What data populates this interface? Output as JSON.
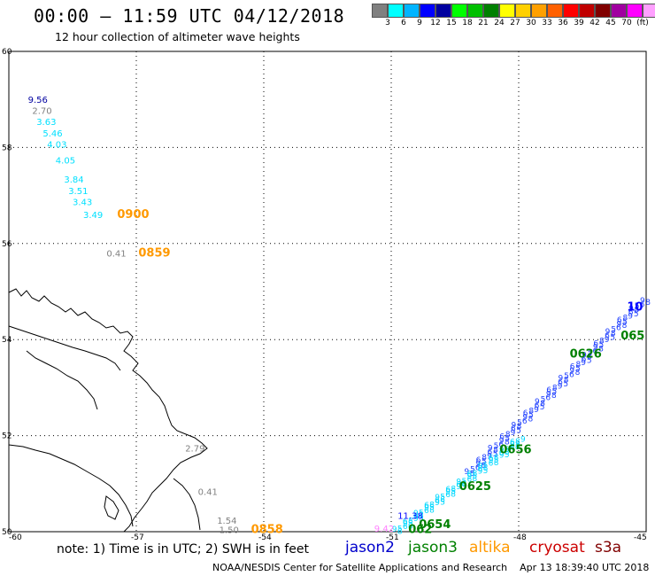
{
  "header": {
    "title": "00:00 – 11:59 UTC 04/12/2018",
    "subtitle": "12 hour collection of altimeter wave heights"
  },
  "colorbar": {
    "colors": [
      "#808080",
      "#00ffff",
      "#00b4ff",
      "#0000ff",
      "#0000a0",
      "#00ff00",
      "#00c000",
      "#008000",
      "#ffff00",
      "#ffd000",
      "#ffa000",
      "#ff6000",
      "#ff0000",
      "#c00000",
      "#800000",
      "#a000a0",
      "#ff00ff",
      "#ffa0ff",
      "#000000"
    ],
    "labels": [
      "3",
      "6",
      "9",
      "12",
      "15",
      "18",
      "21",
      "24",
      "27",
      "30",
      "33",
      "36",
      "39",
      "42",
      "45",
      "70",
      "(ft)"
    ]
  },
  "axes": {
    "lat_ticks": [
      "60",
      "58",
      "56",
      "54",
      "52",
      "50"
    ],
    "lon_ticks": [
      "-60",
      "-57",
      "-54",
      "-51",
      "-48",
      "-45"
    ]
  },
  "observations": [
    {
      "text": "9.56",
      "lon": -59.55,
      "lat": 58.93,
      "color": "#0000a0"
    },
    {
      "text": "2.70",
      "lon": -59.45,
      "lat": 58.7,
      "color": "#808080"
    },
    {
      "text": "3.63",
      "lon": -59.35,
      "lat": 58.47,
      "color": "#00e0ff"
    },
    {
      "text": "5.46",
      "lon": -59.2,
      "lat": 58.23,
      "color": "#00e0ff"
    },
    {
      "text": "4.03",
      "lon": -59.1,
      "lat": 58.0,
      "color": "#00e0ff"
    },
    {
      "text": "4.05",
      "lon": -58.9,
      "lat": 57.67,
      "color": "#00e0ff"
    },
    {
      "text": "3.84",
      "lon": -58.7,
      "lat": 57.27,
      "color": "#00e0ff"
    },
    {
      "text": "3.51",
      "lon": -58.6,
      "lat": 57.03,
      "color": "#00e0ff"
    },
    {
      "text": "3.43",
      "lon": -58.5,
      "lat": 56.8,
      "color": "#00e0ff"
    },
    {
      "text": "3.49",
      "lon": -58.25,
      "lat": 56.53,
      "color": "#00e0ff"
    },
    {
      "text": "0.41",
      "lon": -57.7,
      "lat": 55.73,
      "color": "#808080"
    },
    {
      "text": "2.79",
      "lon": -55.85,
      "lat": 51.67,
      "color": "#808080"
    },
    {
      "text": "0.41",
      "lon": -55.55,
      "lat": 50.77,
      "color": "#808080"
    },
    {
      "text": "1.54",
      "lon": -55.1,
      "lat": 50.17,
      "color": "#808080"
    },
    {
      "text": "1.50",
      "lon": -55.05,
      "lat": 49.97,
      "color": "#808080"
    },
    {
      "text": "11.38",
      "lon": -50.85,
      "lat": 50.27,
      "color": "#0000ff"
    },
    {
      "text": "9.42",
      "lon": -51.4,
      "lat": 50.0,
      "color": "#ff80ff"
    }
  ],
  "time_labels": [
    {
      "text": "0900",
      "lon": -57.45,
      "lat": 56.53,
      "color": "#ff9900"
    },
    {
      "text": "0859",
      "lon": -56.95,
      "lat": 55.73,
      "color": "#ff9900"
    },
    {
      "text": "0858",
      "lon": -54.3,
      "lat": 49.97,
      "color": "#ff9900"
    },
    {
      "text": "0626",
      "lon": -46.8,
      "lat": 53.63,
      "color": "#008000"
    },
    {
      "text": "0656",
      "lon": -48.45,
      "lat": 51.63,
      "color": "#008000"
    },
    {
      "text": "0625",
      "lon": -49.4,
      "lat": 50.87,
      "color": "#008000"
    },
    {
      "text": "0654",
      "lon": -50.35,
      "lat": 50.07,
      "color": "#008000"
    },
    {
      "text": "062",
      "lon": -50.6,
      "lat": 49.97,
      "color": "#008000"
    },
    {
      "text": "065",
      "lon": -45.6,
      "lat": 54.0,
      "color": "#008000"
    },
    {
      "text": "10",
      "lon": -45.45,
      "lat": 54.6,
      "color": "#0000ff"
    }
  ],
  "note": "note: 1) Time is in UTC; 2) SWH is in feet",
  "legend": [
    {
      "name": "jason2",
      "color": "#0000cc"
    },
    {
      "name": "jason3",
      "color": "#008000"
    },
    {
      "name": "altika",
      "color": "#ff9900"
    },
    {
      "name": "cryosat",
      "color": "#cc0000"
    },
    {
      "name": "s3a",
      "color": "#800000"
    }
  ],
  "credit": "NOAA/NESDIS Center for Satellite Applications and Research    Apr 13 18:39:40 UTC 2018"
}
